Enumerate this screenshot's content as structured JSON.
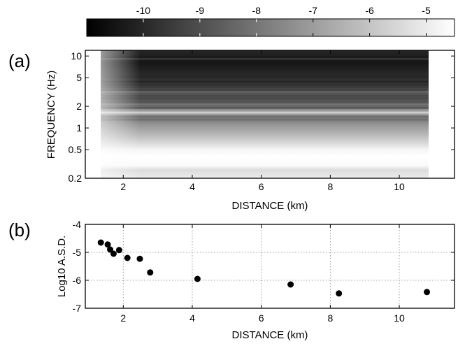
{
  "chart_data": [
    {
      "type": "heatmap",
      "panel_label": "(a)",
      "xlabel": "DISTANCE (km)",
      "ylabel": "FREQUENCY (Hz)",
      "xlim": [
        0.9,
        11.6
      ],
      "ylim": [
        0.2,
        12
      ],
      "y_scale": "log",
      "x_ticks": [
        2,
        4,
        6,
        8,
        10
      ],
      "y_ticks": [
        0.2,
        0.5,
        1,
        2,
        5,
        10
      ],
      "y_tick_labels": [
        "0.2",
        "0.5",
        "1",
        "2",
        "5",
        "10"
      ],
      "data_x_range": [
        1.35,
        10.85
      ],
      "colorbar": {
        "ticks": [
          -10,
          -9,
          -8,
          -7,
          -6,
          -5
        ],
        "tick_labels": [
          "-10",
          "-9",
          "-8",
          "-7",
          "-6",
          "-5"
        ],
        "range": [
          -11,
          -4.5
        ],
        "colormap": "gray",
        "low_color": "#000000",
        "high_color": "#ffffff"
      }
    },
    {
      "type": "scatter",
      "panel_label": "(b)",
      "xlabel": "DISTANCE (km)",
      "ylabel": "Log10 A.S.D.",
      "xlim": [
        0.9,
        11.6
      ],
      "ylim": [
        -7,
        -4
      ],
      "x_ticks": [
        2,
        4,
        6,
        8,
        10
      ],
      "y_ticks": [
        -4,
        -5,
        -6,
        -7
      ],
      "y_tick_labels": [
        "-4",
        "-5",
        "-6",
        "-7"
      ],
      "grid": true,
      "points": [
        {
          "x": 1.35,
          "y": -4.65
        },
        {
          "x": 1.55,
          "y": -4.72
        },
        {
          "x": 1.62,
          "y": -4.9
        },
        {
          "x": 1.72,
          "y": -5.05
        },
        {
          "x": 1.88,
          "y": -4.92
        },
        {
          "x": 2.12,
          "y": -5.2
        },
        {
          "x": 2.48,
          "y": -5.23
        },
        {
          "x": 2.78,
          "y": -5.72
        },
        {
          "x": 4.15,
          "y": -5.95
        },
        {
          "x": 6.85,
          "y": -6.15
        },
        {
          "x": 8.25,
          "y": -6.47
        },
        {
          "x": 10.8,
          "y": -6.42
        }
      ]
    }
  ]
}
